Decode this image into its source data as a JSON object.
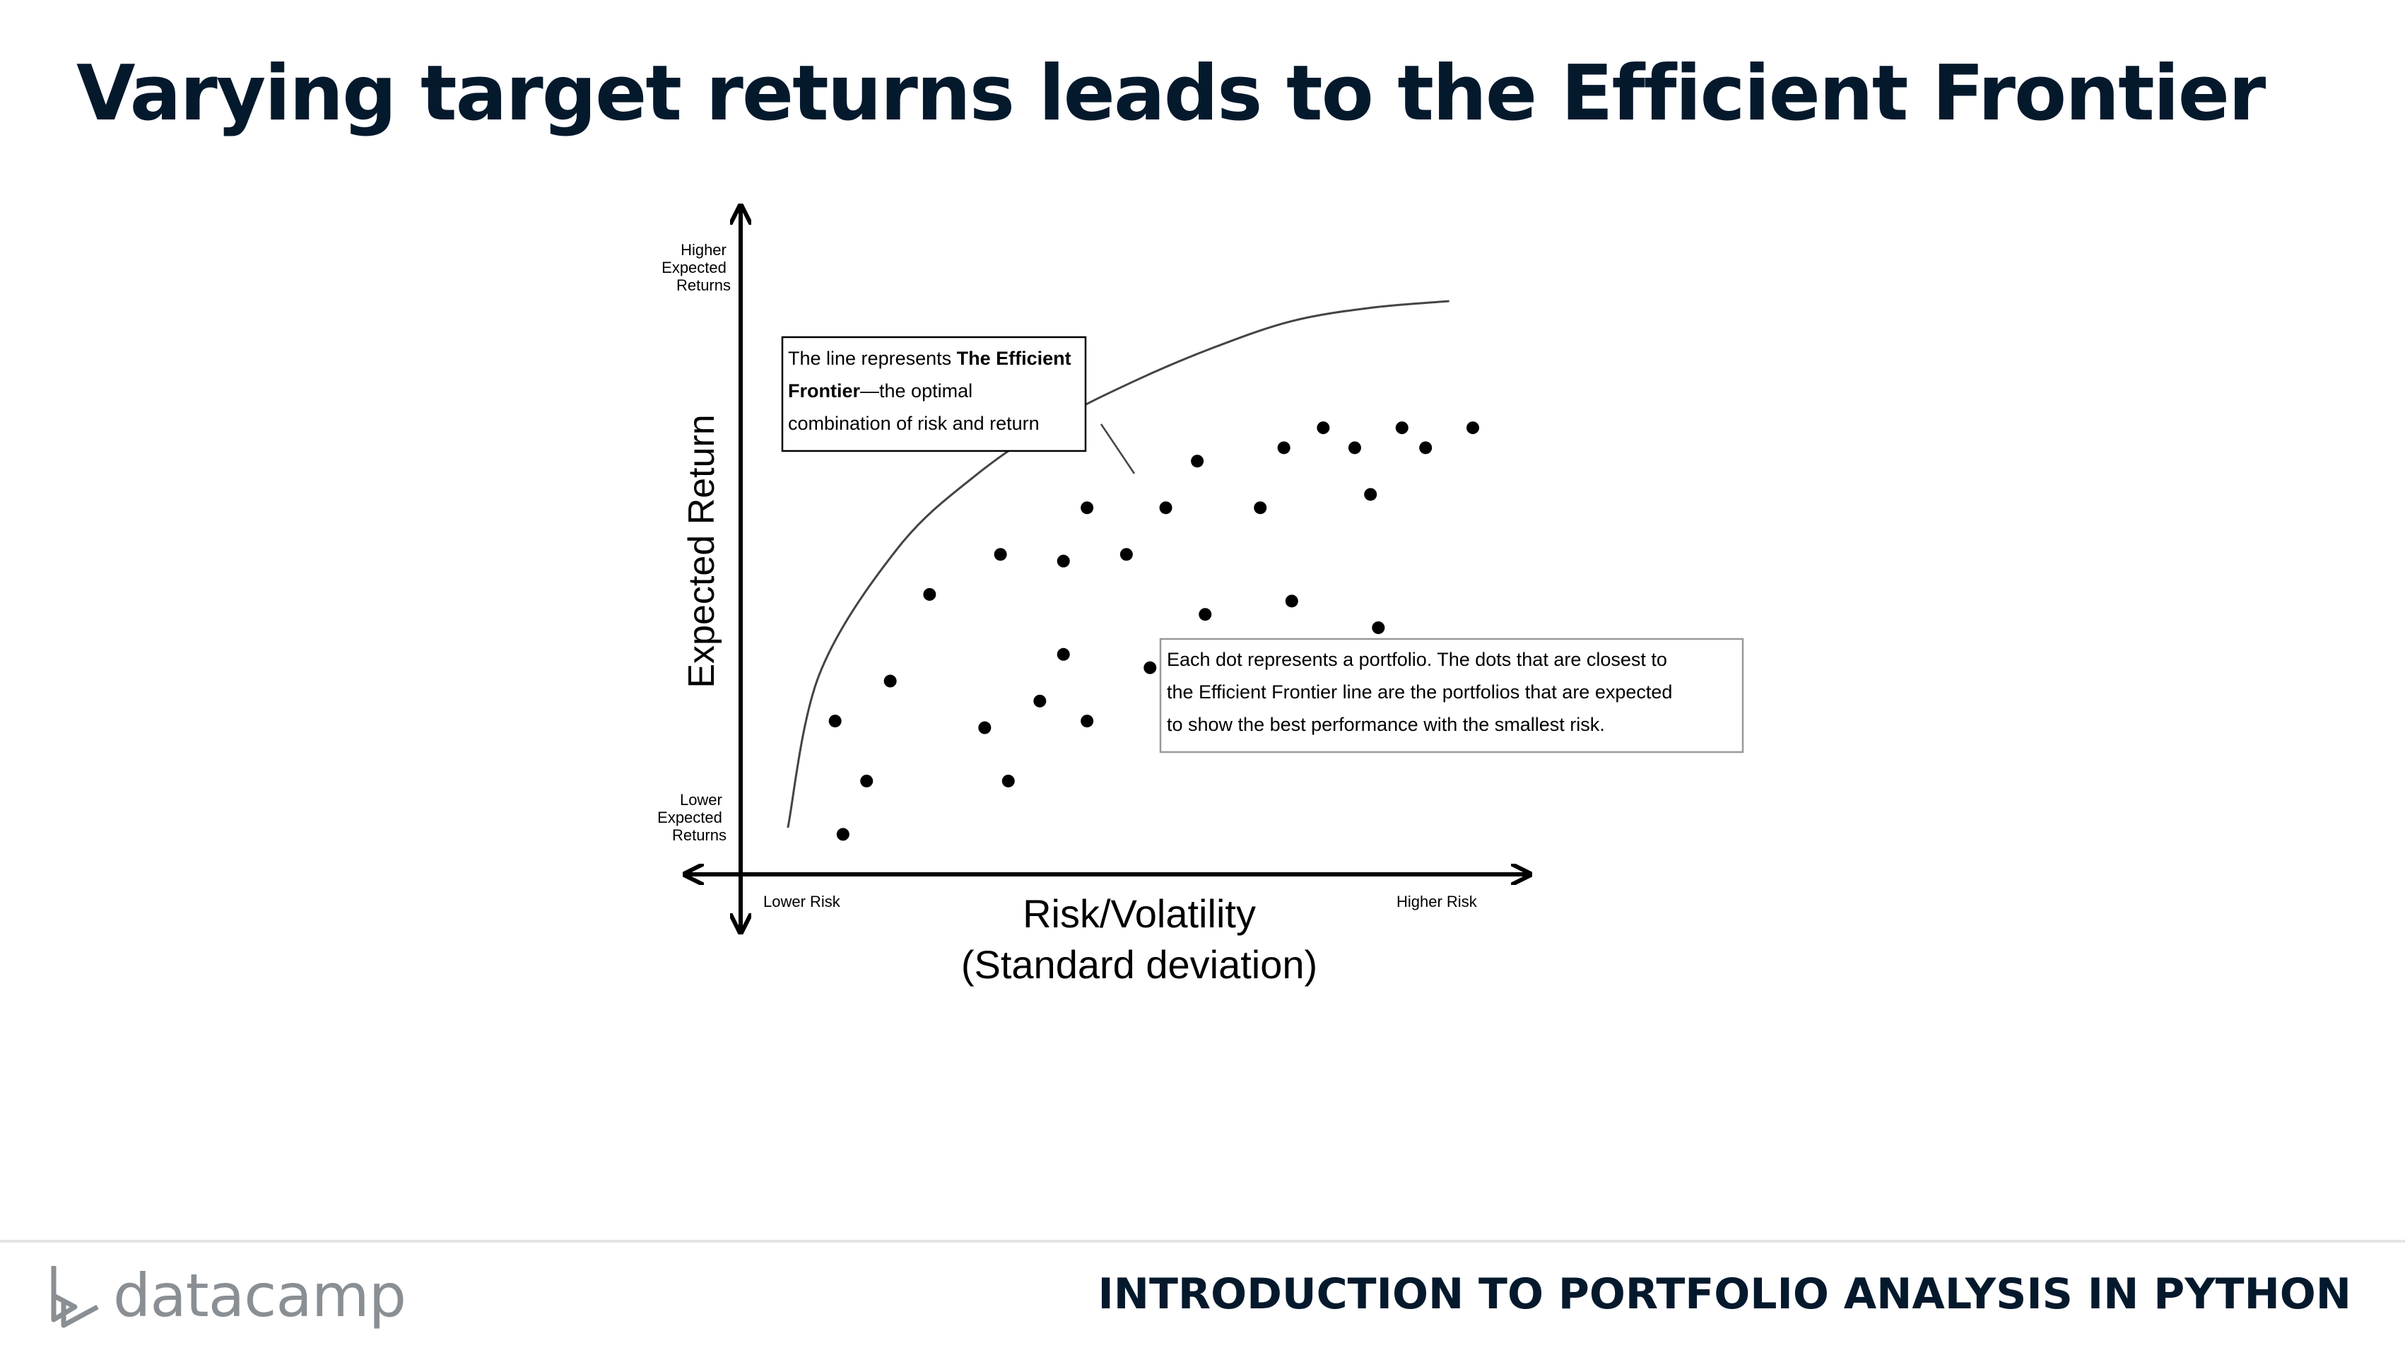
{
  "title": "Varying target returns leads to the Efficient Frontier",
  "footer": {
    "brand": "datacamp",
    "course": "INTRODUCTION TO PORTFOLIO ANALYSIS IN PYTHON"
  },
  "colors": {
    "title": "#05192d",
    "brand_gray": "#8a8f94",
    "ink": "#000000"
  },
  "icons": {
    "logo": "datacamp-logo-icon"
  },
  "chart_data": {
    "type": "scatter",
    "title": "",
    "xlabel_line1": "Risk/Volatility",
    "xlabel_line2": "(Standard deviation)",
    "ylabel": "Expected Return",
    "x_low_label": "Lower Risk",
    "x_high_label": "Higher Risk",
    "y_high_label": [
      "Higher",
      "Expected",
      "Returns"
    ],
    "y_low_label": [
      "Lower",
      "Expected",
      "Returns"
    ],
    "grid": false,
    "axis_ticks": "none",
    "frontier_label": "The Efficient Frontier",
    "frontier_curve": [
      {
        "x": 0.06,
        "y": 0.07
      },
      {
        "x": 0.1,
        "y": 0.3
      },
      {
        "x": 0.2,
        "y": 0.49
      },
      {
        "x": 0.3,
        "y": 0.6
      },
      {
        "x": 0.4,
        "y": 0.68
      },
      {
        "x": 0.5,
        "y": 0.74
      },
      {
        "x": 0.6,
        "y": 0.79
      },
      {
        "x": 0.7,
        "y": 0.83
      },
      {
        "x": 0.8,
        "y": 0.85
      },
      {
        "x": 0.9,
        "y": 0.86
      }
    ],
    "points": [
      {
        "x": 0.13,
        "y": 0.06
      },
      {
        "x": 0.16,
        "y": 0.14
      },
      {
        "x": 0.12,
        "y": 0.23
      },
      {
        "x": 0.19,
        "y": 0.29
      },
      {
        "x": 0.24,
        "y": 0.42
      },
      {
        "x": 0.31,
        "y": 0.22
      },
      {
        "x": 0.33,
        "y": 0.48
      },
      {
        "x": 0.34,
        "y": 0.14
      },
      {
        "x": 0.38,
        "y": 0.26
      },
      {
        "x": 0.41,
        "y": 0.33
      },
      {
        "x": 0.41,
        "y": 0.47
      },
      {
        "x": 0.44,
        "y": 0.55
      },
      {
        "x": 0.44,
        "y": 0.23
      },
      {
        "x": 0.49,
        "y": 0.48
      },
      {
        "x": 0.52,
        "y": 0.31
      },
      {
        "x": 0.54,
        "y": 0.55
      },
      {
        "x": 0.58,
        "y": 0.62
      },
      {
        "x": 0.59,
        "y": 0.39
      },
      {
        "x": 0.66,
        "y": 0.55
      },
      {
        "x": 0.69,
        "y": 0.64
      },
      {
        "x": 0.7,
        "y": 0.41
      },
      {
        "x": 0.74,
        "y": 0.67
      },
      {
        "x": 0.78,
        "y": 0.64
      },
      {
        "x": 0.8,
        "y": 0.57
      },
      {
        "x": 0.81,
        "y": 0.37
      },
      {
        "x": 0.84,
        "y": 0.67
      },
      {
        "x": 0.87,
        "y": 0.64
      },
      {
        "x": 0.93,
        "y": 0.67
      }
    ],
    "callout_frontier": {
      "line1_plain": "The line represents ",
      "line1_bold": "The Efficient",
      "line2_bold": "Frontier",
      "line2_plain": "—the optimal",
      "line3": "combination of risk and return"
    },
    "callout_dots": {
      "lines": [
        "Each dot represents a portfolio. The dots that are closest to",
        "the Efficient Frontier line are the portfolios that are expected",
        "to show the best performance with the smallest risk."
      ]
    }
  }
}
